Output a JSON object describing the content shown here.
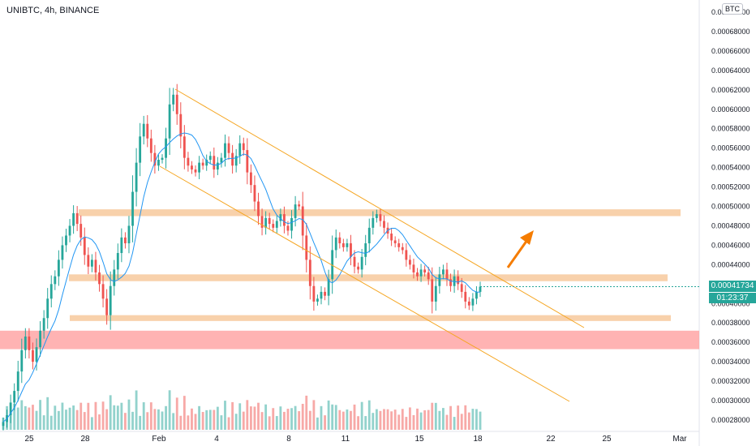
{
  "title": "UNIBTC, 4h, BINANCE",
  "currency_badge": "BTC",
  "last_price": "0.00041734",
  "countdown": "01:23:37",
  "colors": {
    "up": "#26a69a",
    "down": "#ef5350",
    "ma_line": "#2196f3",
    "channel": "#f5a623",
    "zone": "#f5c28f",
    "red_zone": "#ff9999",
    "arrow": "#f57c00"
  },
  "icons": [
    "upward-arrow-icon"
  ],
  "chart_data": {
    "type": "candlestick",
    "symbol": "UNIBTC",
    "timeframe": "4h",
    "exchange": "BINANCE",
    "y_ticks": [
      "0.00070000",
      "0.00068000",
      "0.00066000",
      "0.00064000",
      "0.00062000",
      "0.00060000",
      "0.00058000",
      "0.00056000",
      "0.00054000",
      "0.00052000",
      "0.00050000",
      "0.00048000",
      "0.00046000",
      "0.00044000",
      "0.00040000",
      "0.00038000",
      "0.00036000",
      "0.00034000",
      "0.00032000",
      "0.00030000",
      "0.00028000"
    ],
    "x_ticks": [
      "25",
      "28",
      "Feb",
      "4",
      "8",
      "11",
      "15",
      "18",
      "22",
      "25",
      "Mar"
    ],
    "ylim": [
      0.000272,
      0.000712
    ],
    "closes": [
      0.000278,
      0.000285,
      0.000298,
      0.00031,
      0.00033,
      0.000352,
      0.000366,
      0.000352,
      0.00034,
      0.000355,
      0.000372,
      0.000385,
      0.000405,
      0.00042,
      0.000428,
      0.000445,
      0.00046,
      0.00047,
      0.00048,
      0.000493,
      0.000482,
      0.000468,
      0.00045,
      0.000438,
      0.000445,
      0.000432,
      0.00042,
      0.000405,
      0.000388,
      0.000418,
      0.000435,
      0.000452,
      0.000468,
      0.000462,
      0.00048,
      0.000515,
      0.000545,
      0.000572,
      0.000585,
      0.00057,
      0.000555,
      0.000542,
      0.000548,
      0.00055,
      0.00057,
      0.000605,
      0.000615,
      0.000595,
      0.000572,
      0.00055,
      0.000542,
      0.000538,
      0.000535,
      0.000545,
      0.000542,
      0.000548,
      0.000552,
      0.000538,
      0.000545,
      0.00055,
      0.000565,
      0.000555,
      0.000542,
      0.000552,
      0.000565,
      0.000558,
      0.000535,
      0.000522,
      0.000505,
      0.00049,
      0.000478,
      0.000488,
      0.000482,
      0.000478,
      0.000485,
      0.000492,
      0.00048,
      0.000475,
      0.000488,
      0.000502,
      0.0005,
      0.00047,
      0.000445,
      0.000418,
      0.000402,
      0.000405,
      0.000412,
      0.000408,
      0.000425,
      0.000455,
      0.000468,
      0.000462,
      0.000458,
      0.000462,
      0.000448,
      0.000438,
      0.000435,
      0.000448,
      0.000462,
      0.000478,
      0.000488,
      0.000492,
      0.000485,
      0.000478,
      0.000472,
      0.000465,
      0.000462,
      0.000458,
      0.000455,
      0.000445,
      0.00044,
      0.000432,
      0.000428,
      0.000435,
      0.000432,
      0.000425,
      0.000402,
      0.000418,
      0.00043,
      0.000435,
      0.000425,
      0.000418,
      0.000428,
      0.00042,
      0.000412,
      0.000402,
      0.000398,
      0.000405,
      0.000412,
      0.00041734
    ]
  }
}
